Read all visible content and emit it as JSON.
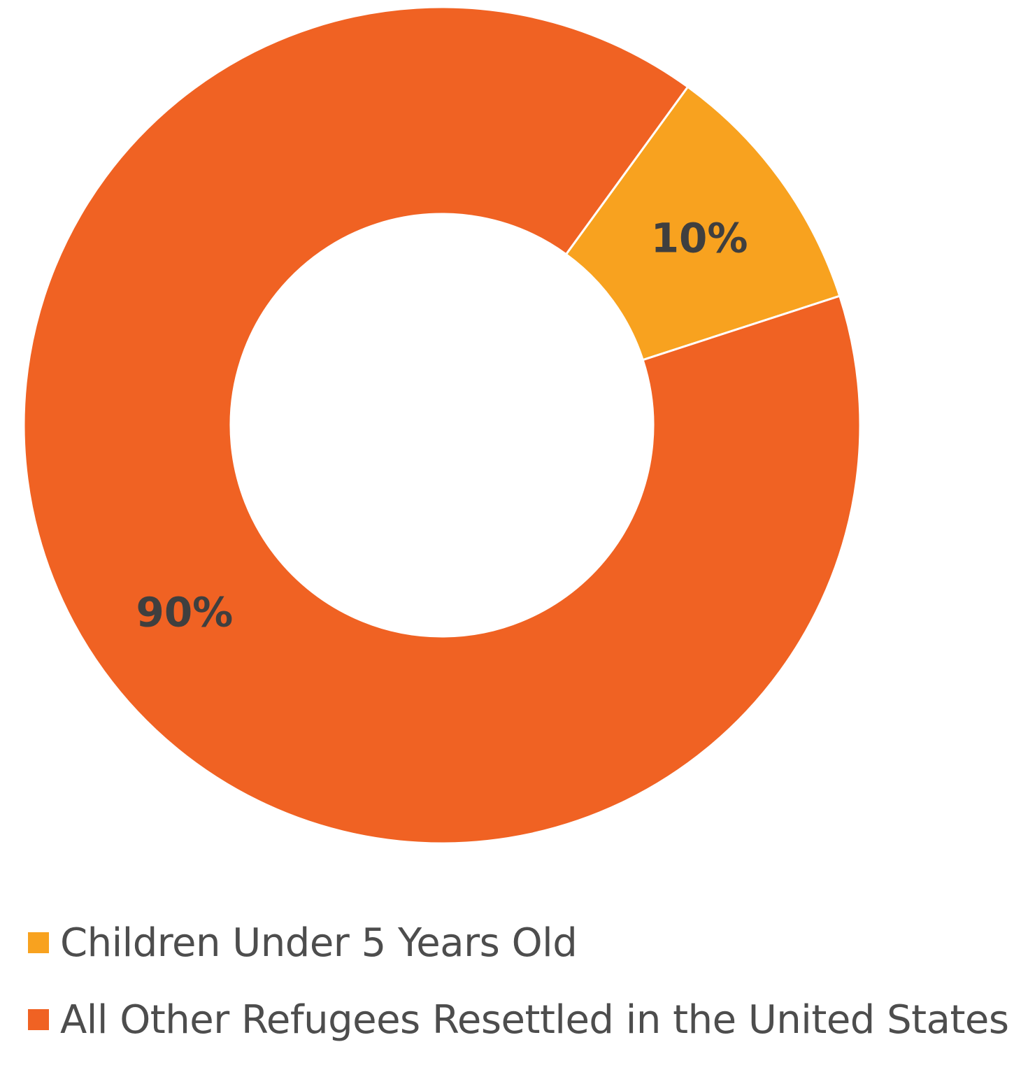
{
  "chart_data": {
    "type": "pie",
    "variant": "donut",
    "title": "",
    "slices": [
      {
        "name": "Children Under 5 Years Old",
        "value": 10,
        "label": "10%",
        "color": "#F8A21F"
      },
      {
        "name": "All Other Refugees Resettled in the United States",
        "value": 90,
        "label": "90%",
        "color": "#F06223"
      }
    ],
    "legend_placement": "bottom-left",
    "slice_separator_color": "#FFFFFF",
    "label_color": "#3F3F3F"
  }
}
